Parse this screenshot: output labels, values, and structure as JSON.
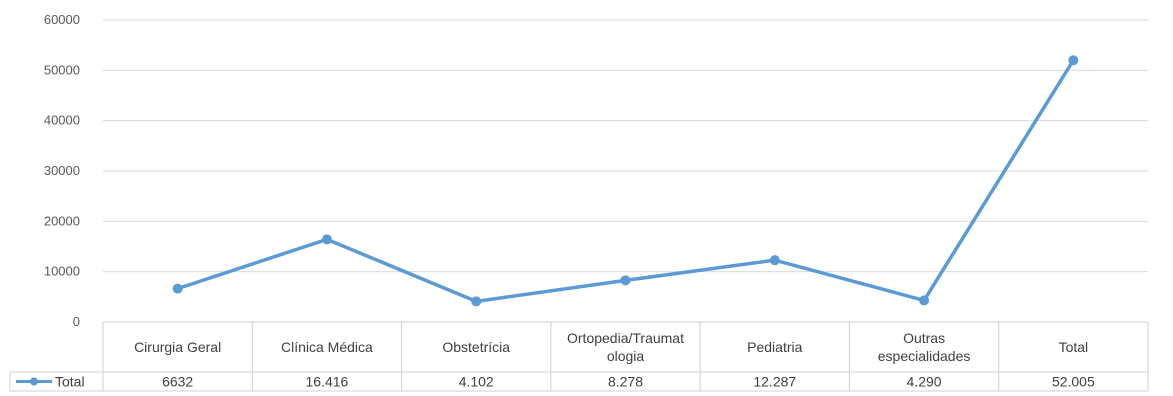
{
  "chart_data": {
    "type": "line",
    "categories": [
      [
        "Cirurgia Geral"
      ],
      [
        "Clínica Médica"
      ],
      [
        "Obstetrícia"
      ],
      [
        "Ortopedia/Traumat",
        "ologia"
      ],
      [
        "Pediatria"
      ],
      [
        "Outras",
        "especialidades"
      ],
      [
        "Total"
      ]
    ],
    "series": [
      {
        "name": "Total",
        "values": [
          6632,
          16416,
          4102,
          8278,
          12287,
          4290,
          52005
        ],
        "labels": [
          "6632",
          "16.416",
          "4.102",
          "8.278",
          "12.287",
          "4.290",
          "52.005"
        ],
        "color": "#5b9bd5"
      }
    ],
    "yticks": [
      "0",
      "10000",
      "20000",
      "30000",
      "40000",
      "50000",
      "60000"
    ],
    "ylim": [
      0,
      60000
    ],
    "grid": true,
    "data_table": true,
    "title": "",
    "xlabel": "",
    "ylabel": ""
  }
}
